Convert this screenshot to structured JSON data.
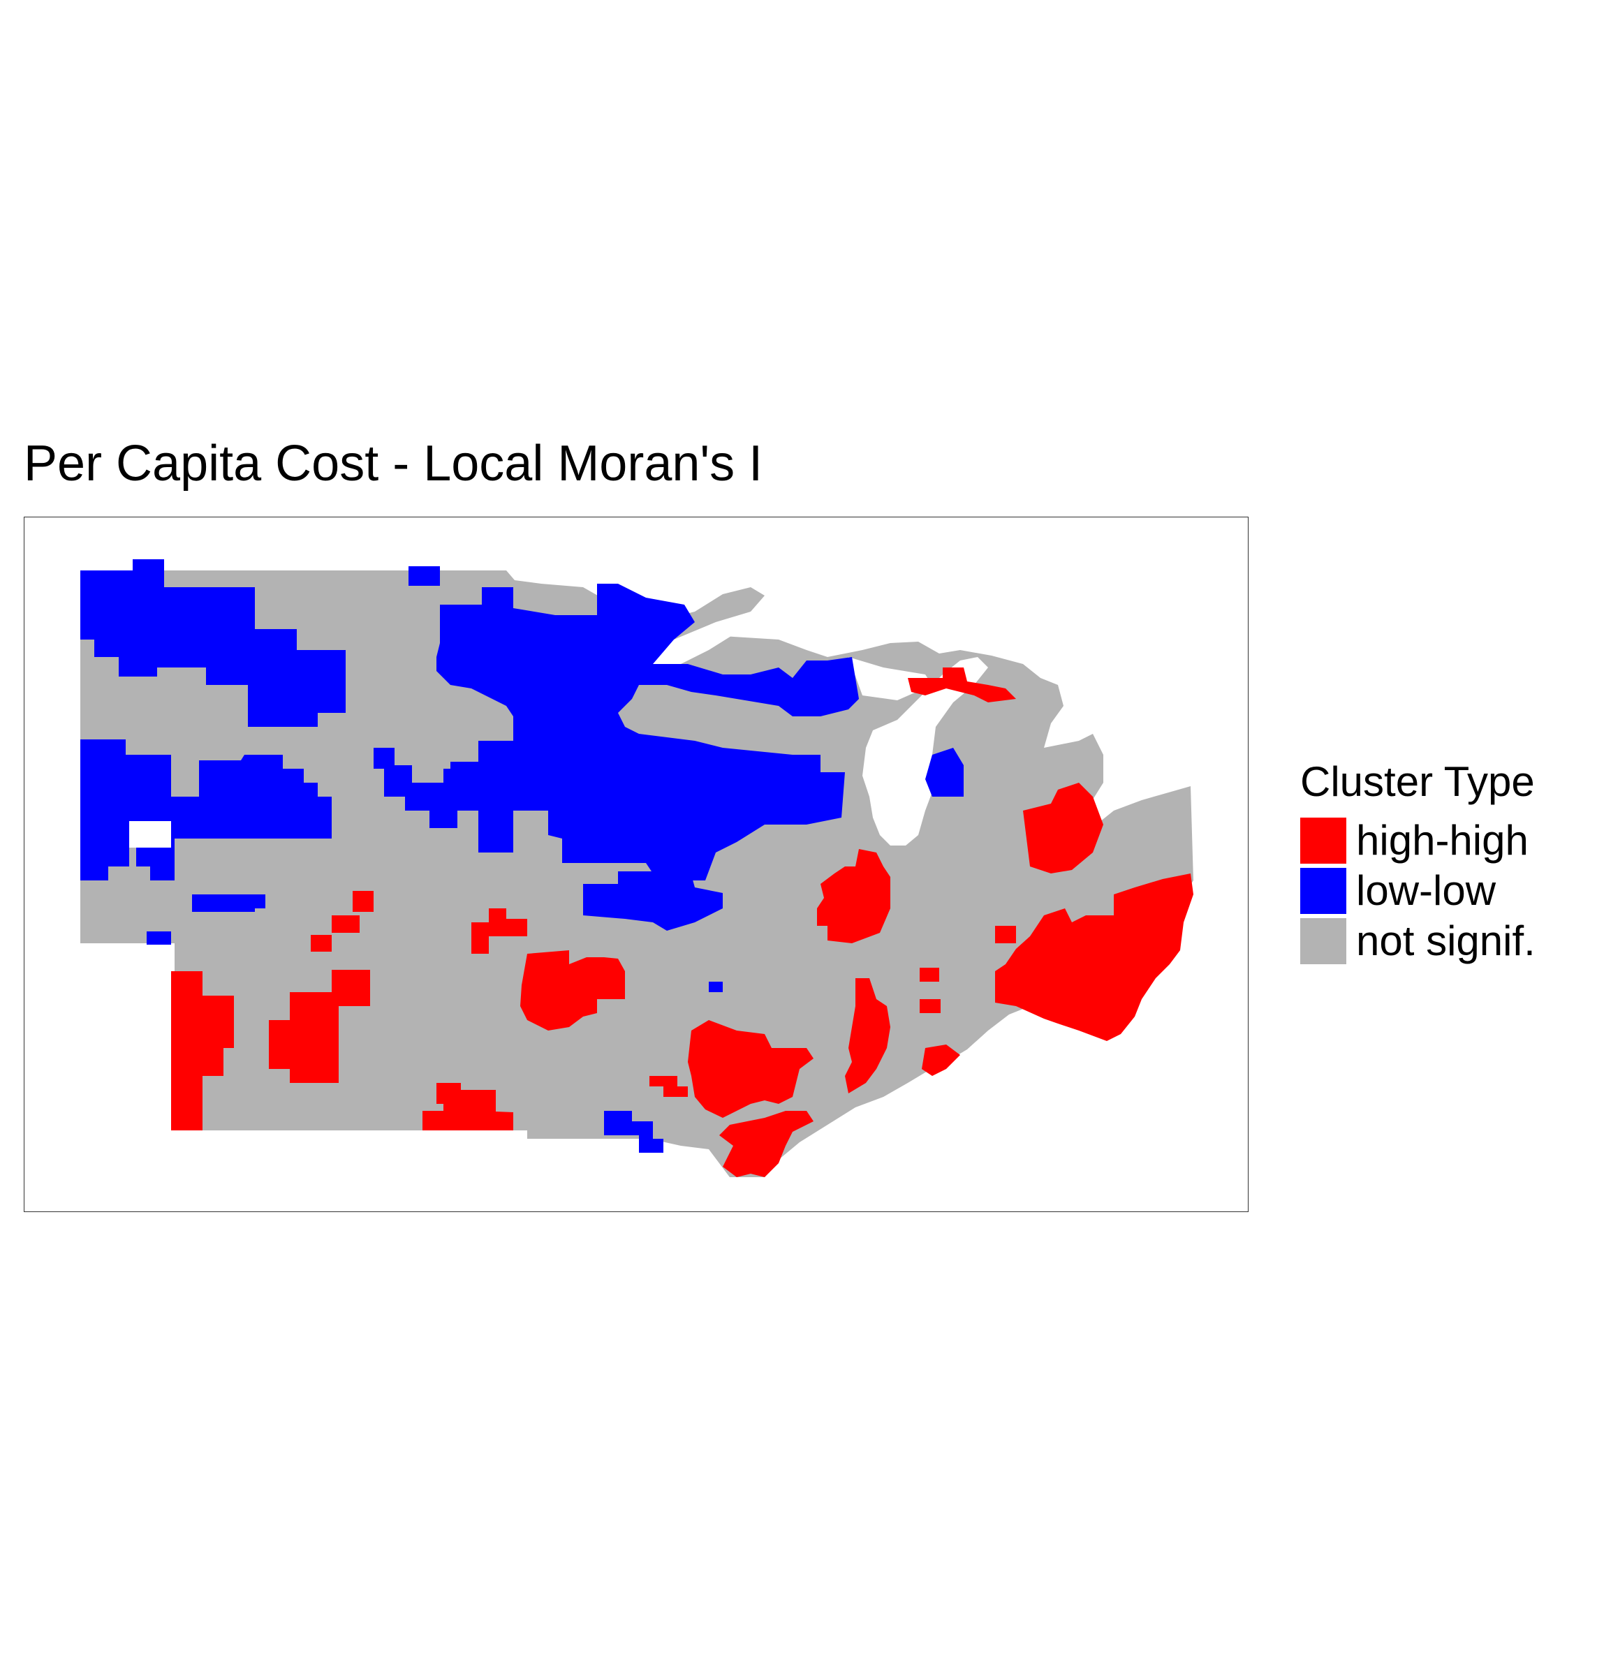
{
  "title": "Per Capita Cost - Local Moran's I",
  "legend": {
    "title": "Cluster Type",
    "items": [
      {
        "label": "high-high",
        "color": "#ff0000"
      },
      {
        "label": "low-low",
        "color": "#0000ff"
      },
      {
        "label": "not signif.",
        "color": "#b3b3b3"
      }
    ]
  },
  "colors": {
    "high_high": "#ff0000",
    "low_low": "#0000ff",
    "not_signif": "#b3b3b3",
    "water": "#ffffff"
  }
}
